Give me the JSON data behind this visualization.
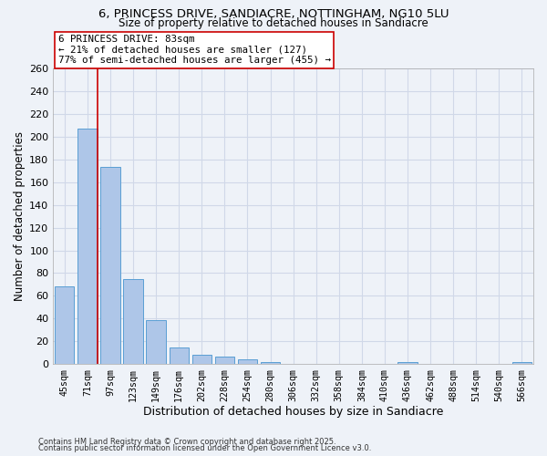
{
  "title": "6, PRINCESS DRIVE, SANDIACRE, NOTTINGHAM, NG10 5LU",
  "subtitle": "Size of property relative to detached houses in Sandiacre",
  "xlabel": "Distribution of detached houses by size in Sandiacre",
  "ylabel": "Number of detached properties",
  "footnote1": "Contains HM Land Registry data © Crown copyright and database right 2025.",
  "footnote2": "Contains public sector information licensed under the Open Government Licence v3.0.",
  "bin_labels": [
    "45sqm",
    "71sqm",
    "97sqm",
    "123sqm",
    "149sqm",
    "176sqm",
    "202sqm",
    "228sqm",
    "254sqm",
    "280sqm",
    "306sqm",
    "332sqm",
    "358sqm",
    "384sqm",
    "410sqm",
    "436sqm",
    "462sqm",
    "488sqm",
    "514sqm",
    "540sqm",
    "566sqm"
  ],
  "bar_values": [
    68,
    207,
    173,
    75,
    39,
    15,
    8,
    7,
    4,
    2,
    0,
    0,
    0,
    0,
    0,
    2,
    0,
    0,
    0,
    0,
    2
  ],
  "bar_color": "#aec6e8",
  "bar_edge_color": "#5a9fd4",
  "grid_color": "#d0d8e8",
  "background_color": "#eef2f8",
  "vline_x": 1.43,
  "vline_color": "#cc0000",
  "annotation_text": "6 PRINCESS DRIVE: 83sqm\n← 21% of detached houses are smaller (127)\n77% of semi-detached houses are larger (455) →",
  "annotation_box_color": "#ffffff",
  "annotation_box_edge_color": "#cc0000",
  "ylim": [
    0,
    260
  ],
  "yticks": [
    0,
    20,
    40,
    60,
    80,
    100,
    120,
    140,
    160,
    180,
    200,
    220,
    240,
    260
  ]
}
